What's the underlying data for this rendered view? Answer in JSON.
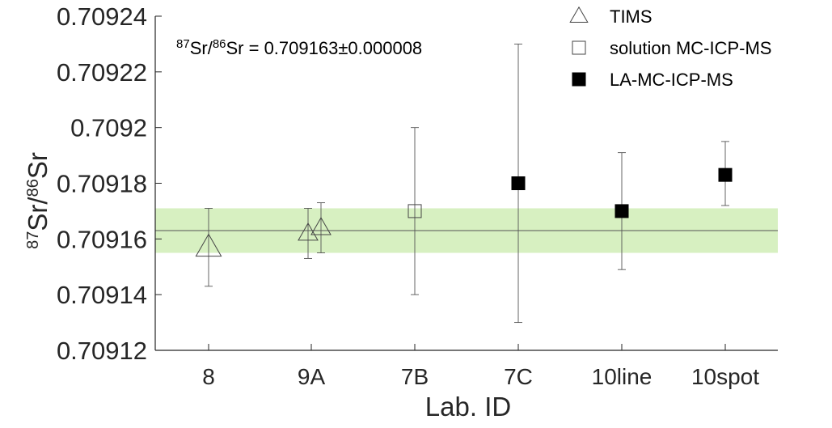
{
  "chart_data": {
    "type": "scatter",
    "xlabel": "Lab. ID",
    "ylabel_parts": {
      "sup1": "87",
      "base1": "Sr/",
      "sup2": "86",
      "base2": "Sr"
    },
    "categories": [
      "8",
      "9A",
      "7B",
      "7C",
      "10line",
      "10spot"
    ],
    "ylim": [
      0.70912,
      0.70924
    ],
    "yticks": [
      0.70912,
      0.70914,
      0.70916,
      0.70918,
      0.7092,
      0.70922,
      0.70924
    ],
    "ytick_labels": [
      "0.70912",
      "0.70914",
      "0.70916",
      "0.70918",
      "0.7092",
      "0.70922",
      "0.70924"
    ],
    "grid": false,
    "legend_position": "top-right",
    "reference": {
      "value": 0.709163,
      "band": [
        0.709155,
        0.709171
      ],
      "band_color": "#d7f0c1",
      "line_color": "#555555",
      "annotation_parts": {
        "sup1": "87",
        "base1": "Sr/",
        "sup2": "86",
        "base2": "Sr = 0.709163±0.000008"
      }
    },
    "series": [
      {
        "name": "TIMS",
        "marker": "triangle-open",
        "points": [
          {
            "x": "8",
            "y": 0.709157,
            "err_low": 0.709143,
            "err_high": 0.709171
          },
          {
            "x": "9A",
            "y": 0.709162,
            "err_low": 0.709153,
            "err_high": 0.709171
          },
          {
            "x": "9A",
            "y": 0.709164,
            "err_low": 0.709155,
            "err_high": 0.709173
          }
        ]
      },
      {
        "name": "solution MC-ICP-MS",
        "marker": "square-open",
        "points": [
          {
            "x": "7B",
            "y": 0.70917,
            "err_low": 0.70914,
            "err_high": 0.7092
          }
        ]
      },
      {
        "name": "LA-MC-ICP-MS",
        "marker": "square-filled",
        "points": [
          {
            "x": "7C",
            "y": 0.70918,
            "err_low": 0.70913,
            "err_high": 0.70923
          },
          {
            "x": "10line",
            "y": 0.70917,
            "err_low": 0.709149,
            "err_high": 0.709191
          },
          {
            "x": "10spot",
            "y": 0.709183,
            "err_low": 0.709172,
            "err_high": 0.709195
          }
        ]
      }
    ]
  }
}
